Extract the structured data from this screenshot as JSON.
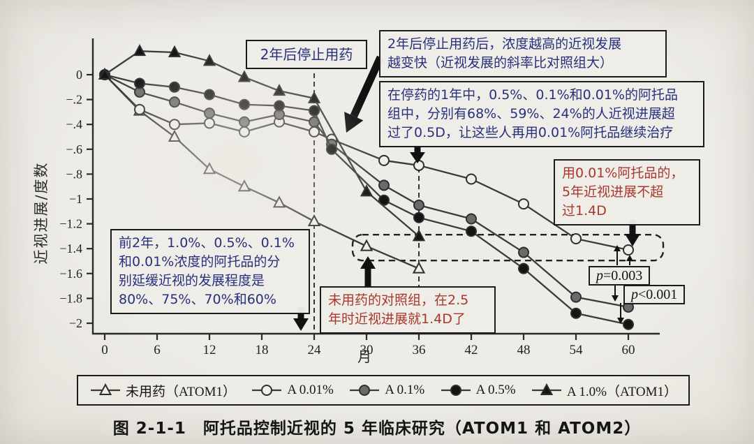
{
  "figure": {
    "caption": "图 2-1-1　阿托品控制近视的 5 年临床研究（ATOM1 和 ATOM2）"
  },
  "axes": {
    "y_label": "近视进展/度数",
    "x_label": "月",
    "x_ticks": [
      0,
      6,
      12,
      18,
      24,
      30,
      36,
      42,
      48,
      54,
      60
    ],
    "y_ticks": [
      {
        "v": 0,
        "label": "0"
      },
      {
        "v": -0.2,
        "label": "−.2"
      },
      {
        "v": -0.4,
        "label": "−.4"
      },
      {
        "v": -0.6,
        "label": "−.6"
      },
      {
        "v": -0.8,
        "label": "−.8"
      },
      {
        "v": -1,
        "label": "−1"
      },
      {
        "v": -1.2,
        "label": "−1.2"
      },
      {
        "v": -1.4,
        "label": "−1.4"
      },
      {
        "v": -1.6,
        "label": "−1.6"
      },
      {
        "v": -1.8,
        "label": "−1.8"
      },
      {
        "v": -2,
        "label": "−2"
      }
    ]
  },
  "chart_data": {
    "type": "line",
    "title": "阿托品控制近视的 5 年临床研究（ATOM1 和 ATOM2）",
    "xlabel": "月",
    "ylabel": "近视进展/度数",
    "xlim": [
      0,
      63
    ],
    "ylim": [
      -2.05,
      0.25
    ],
    "legend_position": "bottom",
    "events": {
      "stop_treatment_month": 24,
      "retreat_month": 36,
      "highlight_level_D": -1.4
    },
    "series": [
      {
        "name": "未用药（ATOM1）",
        "marker": "triangle-open",
        "x": [
          0,
          4,
          8,
          12,
          16,
          20,
          24,
          30,
          36
        ],
        "y": [
          0,
          -0.29,
          -0.5,
          -0.76,
          -0.9,
          -1.03,
          -1.18,
          -1.38,
          -1.56
        ]
      },
      {
        "name": "A 0.01%",
        "marker": "circle-open",
        "x": [
          0,
          4,
          8,
          12,
          16,
          20,
          24,
          26,
          32,
          36,
          42,
          48,
          54,
          60
        ],
        "y": [
          0,
          -0.28,
          -0.4,
          -0.39,
          -0.46,
          -0.38,
          -0.46,
          -0.52,
          -0.69,
          -0.73,
          -0.84,
          -1.04,
          -1.32,
          -1.41
        ]
      },
      {
        "name": "A 0.1%",
        "marker": "circle-gray",
        "x": [
          0,
          4,
          8,
          12,
          16,
          20,
          24,
          26,
          32,
          36,
          42,
          48,
          54,
          60
        ],
        "y": [
          0,
          -0.14,
          -0.22,
          -0.31,
          -0.38,
          -0.32,
          -0.38,
          -0.56,
          -0.89,
          -1.05,
          -1.16,
          -1.43,
          -1.79,
          -1.87
        ]
      },
      {
        "name": "A 0.5%",
        "marker": "circle-black",
        "x": [
          0,
          4,
          8,
          12,
          16,
          20,
          24,
          26,
          32,
          36,
          42,
          48,
          54,
          60
        ],
        "y": [
          0,
          -0.07,
          -0.1,
          -0.16,
          -0.24,
          -0.25,
          -0.29,
          -0.6,
          -1.01,
          -1.15,
          -1.26,
          -1.56,
          -1.92,
          -2.01
        ]
      },
      {
        "name": "A 1.0%（ATOM1）",
        "marker": "triangle-filled",
        "x": [
          0,
          4,
          8,
          12,
          16,
          20,
          24,
          30,
          36
        ],
        "y": [
          0,
          0.19,
          0.18,
          0.11,
          -0.02,
          -0.13,
          -0.19,
          -0.94,
          -1.3
        ]
      }
    ]
  },
  "annotations": {
    "stop_box": {
      "lines": [
        "2年后停止用药"
      ]
    },
    "washout_box": {
      "lines": [
        "2年后停止用药后，浓度越高的近视发展",
        "越变快（近视发展的斜率比对照组大）"
      ]
    },
    "rebound_box": {
      "lines": [
        "在停药的1年中，0.5%、0.1%和0.01%的阿托品",
        "组中，分别有68%、59%、24%的人近视进展超",
        "过了0.5D，让这些人再用0.01%阿托品继续治疗"
      ]
    },
    "low_dose_box": {
      "lines": [
        "用0.01%阿托品的，",
        "5年近视进展不超",
        "过1.4D"
      ]
    },
    "first2y_box": {
      "lines": [
        "前2年，1.0%、0.5%、0.1%",
        "和0.01%浓度的阿托品的分",
        "别延缓近视的发展程度是",
        "80%、75%、70%和60%"
      ]
    },
    "control_box": {
      "lines": [
        "未用药的对照组，在2.5",
        "年时近视进展就1.4D了"
      ]
    },
    "p1": {
      "p": "p",
      "rest": "=0.003"
    },
    "p2": {
      "p": "p",
      "rest": "<0.001"
    }
  },
  "colors": {
    "annotation_navy": "#28307d",
    "annotation_red": "#a8382c",
    "line": "#3b3b3b",
    "marker_gray": "#6a6a6a",
    "marker_black": "#141414",
    "paper": "#ebe8e2"
  }
}
